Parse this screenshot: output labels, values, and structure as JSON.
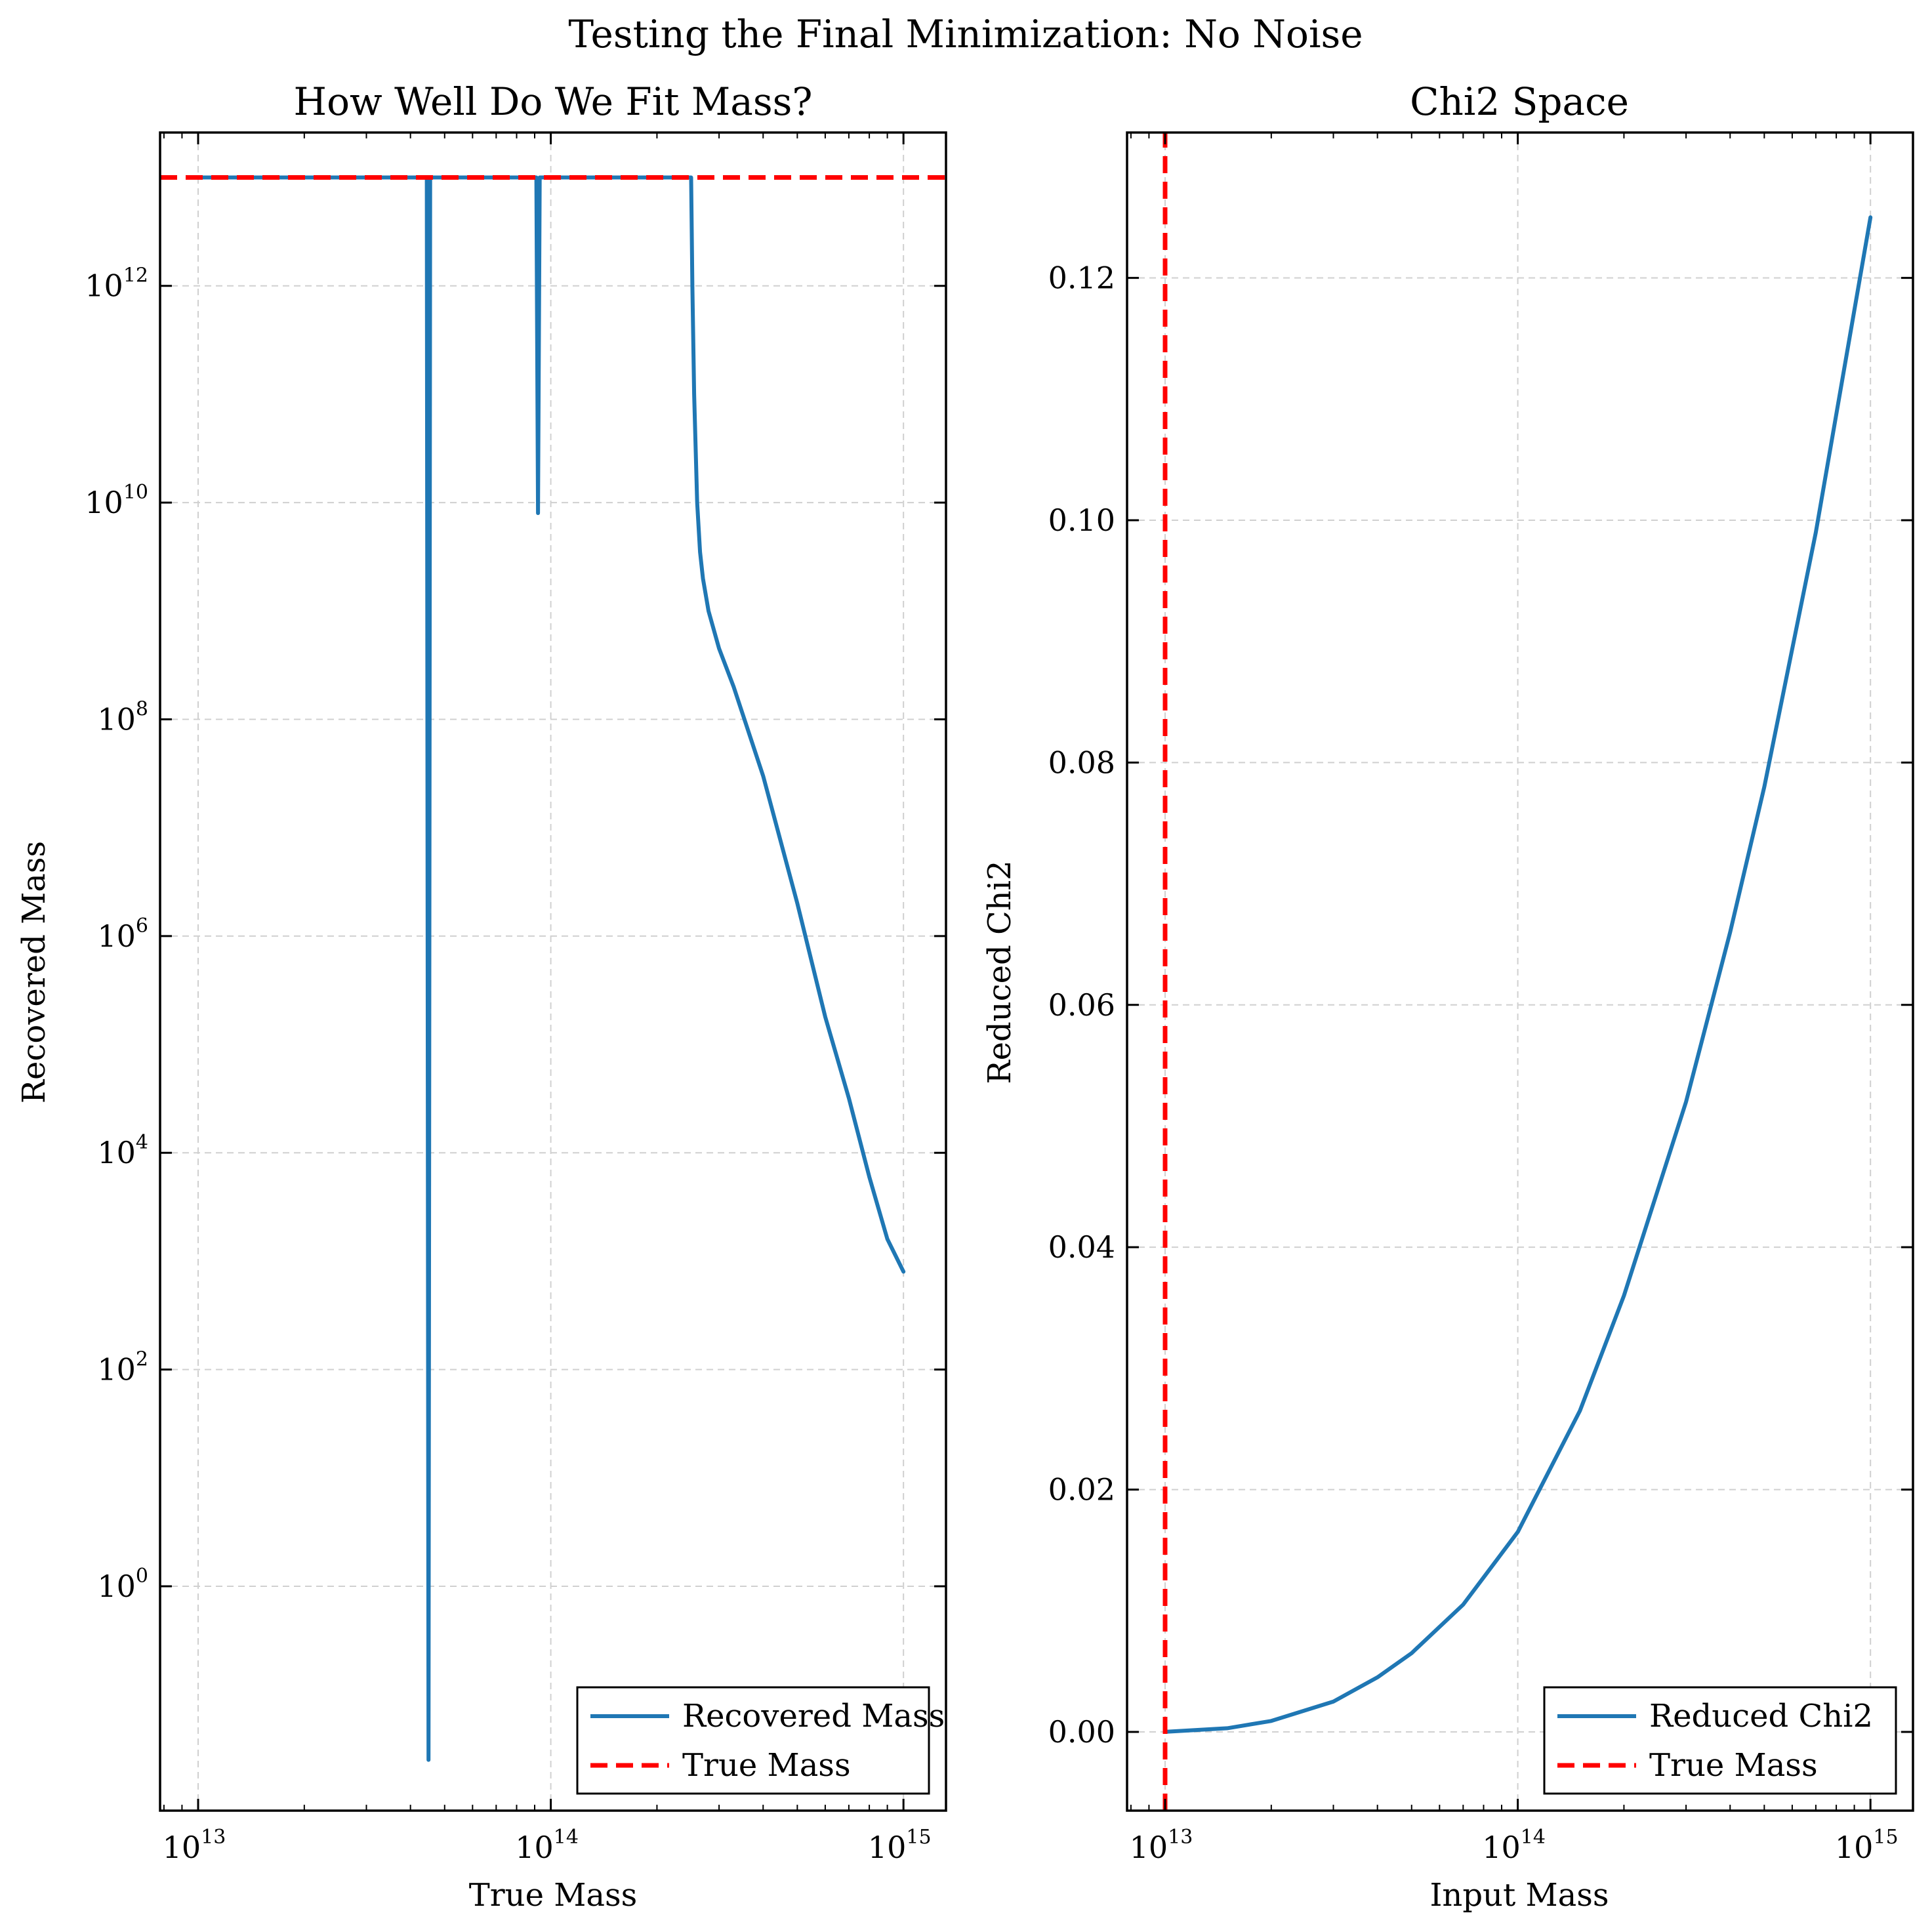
{
  "figure_title": "Testing the Final Minimization: No Noise",
  "colors": {
    "series_blue": "#1f77b4",
    "true_mass_red": "#ff0000",
    "grid": "#d0d0d0"
  },
  "chart_data": [
    {
      "type": "line",
      "title": "How Well Do We Fit Mass?",
      "xlabel": "True Mass",
      "ylabel": "Recovered Mass",
      "xscale": "log",
      "yscale": "log",
      "xlim": [
        7800000000000.0,
        1320000000000000.0
      ],
      "ylim": [
        0.0085,
        26000000000000.0
      ],
      "xticks": [
        {
          "base": "10",
          "exp": "13",
          "value": 10000000000000.0
        },
        {
          "base": "10",
          "exp": "14",
          "value": 100000000000000.0
        },
        {
          "base": "10",
          "exp": "15",
          "value": 1000000000000000.0
        }
      ],
      "yticks": [
        {
          "base": "10",
          "exp": "0",
          "value": 1
        },
        {
          "base": "10",
          "exp": "2",
          "value": 100
        },
        {
          "base": "10",
          "exp": "4",
          "value": 10000
        },
        {
          "base": "10",
          "exp": "6",
          "value": 1000000.0
        },
        {
          "base": "10",
          "exp": "8",
          "value": 100000000.0
        },
        {
          "base": "10",
          "exp": "10",
          "value": 10000000000.0
        },
        {
          "base": "10",
          "exp": "12",
          "value": 1000000000000.0
        }
      ],
      "grid": true,
      "legend_position": "lower right",
      "series": [
        {
          "name": "Recovered Mass",
          "style": "solid",
          "color": "#1f77b4",
          "x": [
            10000000000000.0,
            44000000000000.0,
            44500000000000.0,
            45000000000000.0,
            45500000000000.0,
            46000000000000.0,
            91000000000000.0,
            92000000000000.0,
            93000000000000.0,
            94000000000000.0,
            250000000000000.0,
            252000000000000.0,
            255000000000000.0,
            260000000000000.0,
            265000000000000.0,
            270000000000000.0,
            280000000000000.0,
            300000000000000.0,
            330000000000000.0,
            400000000000000.0,
            500000000000000.0,
            600000000000000.0,
            700000000000000.0,
            800000000000000.0,
            900000000000000.0,
            1000000000000000.0
          ],
          "y": [
            10000000000000.0,
            10000000000000.0,
            10000000000000.0,
            0.025,
            10000000000000.0,
            10000000000000.0,
            10000000000000.0,
            8000000000.0,
            10000000000000.0,
            10000000000000.0,
            10000000000000.0,
            1000000000000.0,
            100000000000.0,
            10000000000.0,
            3500000000.0,
            2000000000.0,
            1000000000.0,
            450000000.0,
            200000000.0,
            30000000.0,
            2000000.0,
            180000.0,
            32000.0,
            6000.0,
            1600.0,
            800.0
          ]
        },
        {
          "name": "True Mass",
          "style": "dashed",
          "color": "#ff0000",
          "x": [
            7800000000000.0,
            1320000000000000.0
          ],
          "y": [
            10000000000000.0,
            10000000000000.0
          ]
        }
      ]
    },
    {
      "type": "line",
      "title": "Chi2 Space",
      "xlabel": "Input Mass",
      "ylabel": "Reduced Chi2",
      "xscale": "log",
      "yscale": "linear",
      "xlim": [
        7800000000000.0,
        1320000000000000.0
      ],
      "ylim": [
        -0.0065,
        0.132
      ],
      "xticks": [
        {
          "base": "10",
          "exp": "13",
          "value": 10000000000000.0
        },
        {
          "base": "10",
          "exp": "14",
          "value": 100000000000000.0
        },
        {
          "base": "10",
          "exp": "15",
          "value": 1000000000000000.0
        }
      ],
      "yticks": [
        {
          "label": "0.00",
          "value": 0
        },
        {
          "label": "0.02",
          "value": 0.02
        },
        {
          "label": "0.04",
          "value": 0.04
        },
        {
          "label": "0.06",
          "value": 0.06
        },
        {
          "label": "0.08",
          "value": 0.08
        },
        {
          "label": "0.10",
          "value": 0.1
        },
        {
          "label": "0.12",
          "value": 0.12
        }
      ],
      "grid": true,
      "legend_position": "lower right",
      "series": [
        {
          "name": "Reduced Chi2",
          "style": "solid",
          "color": "#1f77b4",
          "x": [
            10000000000000.0,
            15000000000000.0,
            20000000000000.0,
            30000000000000.0,
            40000000000000.0,
            50000000000000.0,
            70000000000000.0,
            100000000000000.0,
            150000000000000.0,
            200000000000000.0,
            300000000000000.0,
            400000000000000.0,
            500000000000000.0,
            700000000000000.0,
            1000000000000000.0
          ],
          "y": [
            0,
            0.0003,
            0.0009,
            0.0025,
            0.0045,
            0.0065,
            0.0105,
            0.0165,
            0.0265,
            0.036,
            0.052,
            0.066,
            0.078,
            0.099,
            0.125
          ]
        },
        {
          "name": "True Mass",
          "style": "dashed",
          "color": "#ff0000",
          "x": [
            10000000000000.0,
            10000000000000.0
          ],
          "y": [
            -0.0065,
            0.132
          ]
        }
      ]
    }
  ]
}
